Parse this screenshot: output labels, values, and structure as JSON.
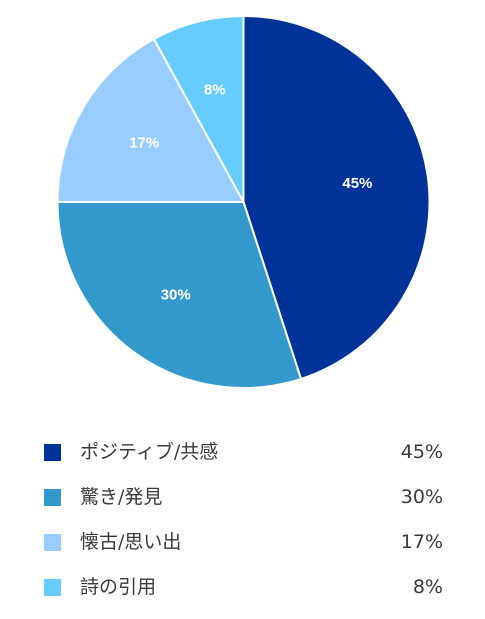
{
  "chart_data": {
    "type": "pie",
    "categories": [
      "ポジティブ/共感",
      "驚き/発見",
      "懐古/思い出",
      "詩の引用"
    ],
    "values": [
      45,
      30,
      17,
      8
    ],
    "labels": [
      "45%",
      "30%",
      "17%",
      "8%"
    ],
    "colors": [
      "#003399",
      "#3399cc",
      "#99ccff",
      "#66ccff"
    ],
    "start_angle_deg": 0,
    "direction": "clockwise",
    "legend_position": "bottom"
  }
}
